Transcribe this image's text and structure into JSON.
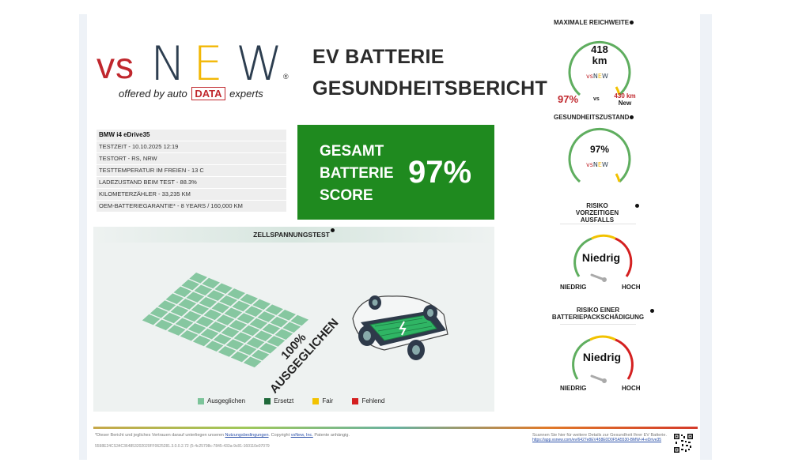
{
  "logo": {
    "vs": "vs",
    "n": "N",
    "e": "E",
    "w": "W",
    "reg": "®",
    "offered_by": "offered by auto",
    "data": "DATA",
    "experts": "experts"
  },
  "title": {
    "line1": "EV BATTERIE",
    "line2": "GESUNDHEITSBERICHT"
  },
  "info": {
    "vehicle": "BMW i4 eDrive35",
    "rows": [
      "TESTZEIT - 10.10.2025 12:19",
      "TESTORT - RS, NRW",
      "TESTTEMPERATUR IM FREIEN - 13 C",
      "LADEZUSTAND BEIM TEST - 88.3%",
      "KILOMETERZÄHLER - 33,235 KM",
      "OEM-BATTERIEGARANTIE* - 8 YEARS / 160,000 KM"
    ]
  },
  "score": {
    "line1": "GESAMT",
    "line2": "BATTERIE",
    "line3": "SCORE",
    "value": "97%"
  },
  "cells": {
    "heading": "ZELLSPANNUNGSTEST",
    "balanced_pct": "100%",
    "balanced_label": "AUSGEGLICHEN",
    "legend": [
      {
        "label": "Ausgeglichen",
        "color": "#7cc49a"
      },
      {
        "label": "Ersetzt",
        "color": "#1f6a3a"
      },
      {
        "label": "Fair",
        "color": "#f2c200"
      },
      {
        "label": "Fehlend",
        "color": "#d42020"
      }
    ]
  },
  "range": {
    "heading": "MAXIMALE REICHWEITE",
    "value": "418",
    "unit": "km",
    "pct": "97%",
    "vs": "vs",
    "new_value": "430 km",
    "new_label": "New",
    "level": 0.97
  },
  "health": {
    "heading": "GESUNDHEITSZUSTAND",
    "value": "97%",
    "level": 0.97
  },
  "risk_failure": {
    "heading_line1": "RISIKO",
    "heading_line2": "VORZEITIGEN",
    "heading_line3": "AUSFALLS",
    "value": "Niedrig",
    "low": "NIEDRIG",
    "high": "HOCH"
  },
  "risk_pack": {
    "heading_line1": "RISIKO EINER",
    "heading_line2": "BATTERIEPACKSCHÄDIGUNG",
    "value": "Niedrig",
    "low": "NIEDRIG",
    "high": "HOCH"
  },
  "footer": {
    "disclaimer_pre": "*Dieser Bericht und jegliches Vertrauen darauf unterliegen unseren",
    "terms_link": "Nutzungsbedingungen",
    "disclaimer_mid": ". Copyright",
    "company_link": "vsNew, Inc.",
    "disclaimer_post": "Patente anhängig.",
    "report_id": "5598E24CS34C364853202020FF0625281.3.0.0.2.72 (5-4c25798c-7845-433a-9c81-160110e07079",
    "scan_text": "Scannen Sie hier für weitere Details zur Gesundheit Ihrer EV Batterie.",
    "scan_link": "https://app.vsnew.com/ev/6427e8EV458E0D0F5A5530-BMW-i4-eDrive35"
  },
  "colors": {
    "score_green": "#1f8a1f",
    "brand_red": "#c0272d",
    "brand_yellow": "#f2b705",
    "brand_navy": "#2d3e50"
  }
}
